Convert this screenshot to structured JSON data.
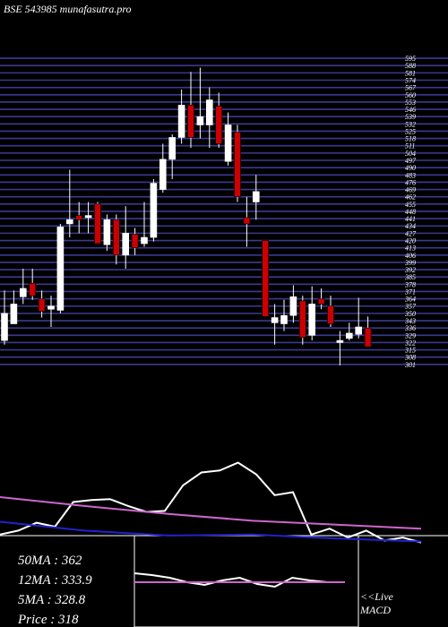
{
  "chart_data": [
    {
      "type": "candlestick",
      "title": "BSE 543985 munafasutra.pro",
      "open": [
        324,
        340,
        366,
        379,
        364,
        354,
        353,
        436,
        444,
        442,
        455,
        416,
        440,
        406,
        426,
        417,
        423,
        469,
        498,
        519,
        550,
        531,
        531,
        549,
        496,
        524,
        442,
        457,
        420,
        341,
        340,
        348,
        362,
        329,
        364,
        357,
        322,
        326,
        330,
        336
      ],
      "high": [
        372,
        372,
        393,
        393,
        372,
        367,
        436,
        488,
        457,
        457,
        457,
        445,
        445,
        453,
        432,
        457,
        479,
        513,
        522,
        565,
        582,
        586,
        567,
        562,
        543,
        531,
        462,
        483,
        420,
        359,
        363,
        377,
        367,
        376,
        374,
        367,
        333,
        341,
        365,
        347
      ],
      "low": [
        320,
        340,
        359,
        363,
        346,
        337,
        350,
        423,
        427,
        427,
        417,
        410,
        397,
        393,
        406,
        414,
        419,
        466,
        479,
        513,
        509,
        518,
        509,
        509,
        492,
        457,
        414,
        440,
        347,
        320,
        333,
        341,
        320,
        324,
        354,
        337,
        300,
        324,
        326,
        318
      ],
      "close": [
        350,
        359,
        374,
        367,
        352,
        357,
        433,
        440,
        440,
        444,
        417,
        440,
        406,
        427,
        413,
        423,
        475,
        498,
        519,
        550,
        519,
        539,
        555,
        513,
        531,
        462,
        436,
        467,
        347,
        346,
        348,
        366,
        327,
        359,
        359,
        340,
        324,
        331,
        337,
        318
      ],
      "up_color": "#ffffff",
      "down_color": "#cc0000",
      "grid_color": "#3a3a90",
      "ylim": [
        300,
        651
      ],
      "yticks": [
        301,
        308,
        315,
        322,
        329,
        336,
        343,
        350,
        357,
        364,
        371,
        378,
        385,
        392,
        399,
        406,
        413,
        420,
        427,
        434,
        441,
        448,
        455,
        462,
        469,
        476,
        483,
        490,
        497,
        504,
        511,
        518,
        525,
        532,
        539,
        546,
        553,
        560,
        567,
        574,
        581,
        588,
        595
      ],
      "grid": true
    },
    {
      "type": "line",
      "ylim": [
        0,
        100
      ],
      "series": [
        {
          "color": "#ffffff",
          "values": [
            12,
            16,
            24,
            20,
            45,
            47,
            48,
            41,
            35,
            36,
            62,
            75,
            77,
            85,
            73,
            52,
            55,
            12,
            18,
            9,
            16,
            6,
            9,
            4
          ]
        },
        {
          "color": "#cc66cc",
          "values": [
            50,
            41,
            33,
            26,
            22,
            18
          ]
        },
        {
          "color": "#2222cc",
          "values": [
            25,
            16,
            11,
            12,
            8,
            5
          ]
        }
      ],
      "annotations": [
        "50MA : 362",
        "12MA : 333.9",
        "5MA : 328.8",
        "Price   : 318"
      ]
    },
    {
      "type": "line",
      "ylim": [
        0,
        100
      ],
      "label": [
        "<<Live",
        "MACD"
      ],
      "series": [
        {
          "color": "#ffffff",
          "values": [
            60,
            58,
            55,
            50,
            47,
            52,
            55,
            48,
            45,
            55,
            52,
            50,
            50
          ]
        },
        {
          "color": "#cc66cc",
          "values": [
            50,
            50
          ]
        }
      ]
    }
  ]
}
